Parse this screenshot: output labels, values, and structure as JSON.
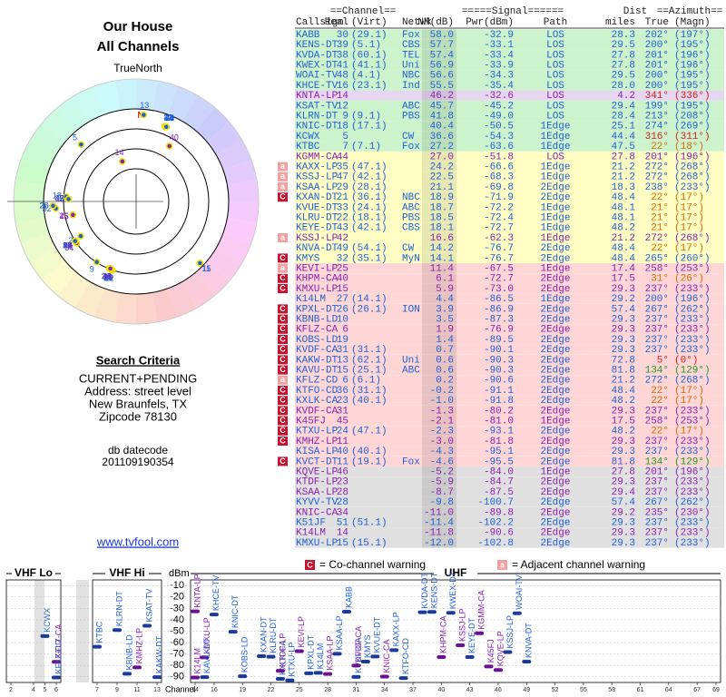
{
  "header": {
    "title": "Our House",
    "subtitle": "All Channels"
  },
  "polar": {
    "north_label": "TrueNorth",
    "north_marker": "N"
  },
  "criteria": {
    "title": "Search Criteria",
    "lines": [
      "CURRENT+PENDING",
      "Address: street level",
      "New Braunfels, TX",
      "Zipcode 78130"
    ],
    "datecode_label": "db datecode",
    "datecode": "201109190354"
  },
  "link": "www.tvfool.com",
  "table": {
    "group_headers": [
      "==Channel==",
      "=====Signal======",
      "Dist",
      "==Azimuth=="
    ],
    "headers": [
      "Callsign",
      "Real",
      "(Virt)",
      "Netwk",
      "NM(dB)",
      "Pwr(dBm)",
      "Path",
      "miles",
      "True",
      "(Magn)"
    ],
    "rows": [
      {
        "cells": [
          "KABB",
          "30",
          "(29.1)",
          "Fox",
          "58.0",
          "-32.9",
          "LOS",
          "28.3",
          "202°",
          "(197°)"
        ],
        "bg": "#cdf3cd",
        "fg": "#1f5fd6"
      },
      {
        "cells": [
          "KENS-DT",
          "39",
          "(5.1)",
          "CBS",
          "57.7",
          "-33.1",
          "LOS",
          "29.5",
          "200°",
          "(195°)"
        ],
        "bg": "#cdf3cd",
        "fg": "#1f5fd6"
      },
      {
        "cells": [
          "KVDA-DT",
          "38",
          "(60.1)",
          "TEL",
          "57.4",
          "-33.4",
          "LOS",
          "27.8",
          "201°",
          "(196°)"
        ],
        "bg": "#cdf3cd",
        "fg": "#1f5fd6"
      },
      {
        "cells": [
          "KWEX-DT",
          "41",
          "(41.1)",
          "Uni",
          "56.9",
          "-33.9",
          "LOS",
          "27.8",
          "201°",
          "(196°)"
        ],
        "bg": "#cdf3cd",
        "fg": "#1f5fd6"
      },
      {
        "cells": [
          "WOAI-TV",
          "48",
          "(4.1)",
          "NBC",
          "56.6",
          "-34.3",
          "LOS",
          "29.5",
          "200°",
          "(195°)"
        ],
        "bg": "#cdf3cd",
        "fg": "#1f5fd6"
      },
      {
        "cells": [
          "KHCE-TV",
          "16",
          "(23.1)",
          "Ind",
          "55.5",
          "-35.4",
          "LOS",
          "28.0",
          "200°",
          "(195°)"
        ],
        "bg": "#cdf3cd",
        "fg": "#1f5fd6"
      },
      {
        "cells": [
          "KNTA-LP",
          "14",
          null,
          null,
          "46.2",
          "-32.6",
          "LOS",
          "4.2",
          "341°",
          "(336°)"
        ],
        "bg": "#e6d6f0",
        "fg": "#8b1fb0",
        "az_fg": "#d42020"
      },
      {
        "cells": [
          "KSAT-TV",
          "12",
          null,
          "ABC",
          "45.7",
          "-45.2",
          "LOS",
          "29.4",
          "199°",
          "(195°)"
        ],
        "bg": "#cdf3cd",
        "fg": "#1f5fd6"
      },
      {
        "cells": [
          "KLRN-DT",
          "9",
          "(9.1)",
          "PBS",
          "41.8",
          "-49.0",
          "LOS",
          "28.4",
          "213°",
          "(208°)"
        ],
        "bg": "#cdf3cd",
        "fg": "#1f5fd6"
      },
      {
        "cells": [
          "KNIC-DT",
          "18",
          "(17.1)",
          null,
          "40.4",
          "-50.5",
          "1Edge",
          "25.1",
          "274°",
          "(269°)"
        ],
        "bg": "#cdf3cd",
        "fg": "#1f5fd6"
      },
      {
        "cells": [
          "KCWX",
          "5",
          null,
          "CW",
          "36.6",
          "-54.3",
          "1Edge",
          "44.4",
          "316°",
          "(311°)"
        ],
        "bg": "#cdf3cd",
        "fg": "#1f5fd6",
        "az_fg": "#d42020"
      },
      {
        "cells": [
          "KTBC",
          "7",
          "(7.1)",
          "Fox",
          "27.2",
          "-63.6",
          "1Edge",
          "47.5",
          "22°",
          "(18°)"
        ],
        "bg": "#cdf3cd",
        "fg": "#1f5fd6",
        "az_fg": "#d86a00"
      },
      {
        "cells": [
          "KGMM-CA",
          "44",
          null,
          null,
          "27.0",
          "-51.8",
          "LOS",
          "27.8",
          "201°",
          "(196°)"
        ],
        "bg": "#ffffc4",
        "fg": "#8b1fb0"
      },
      {
        "cells": [
          "KAXX-LP",
          "35",
          "(47.1)",
          null,
          "24.2",
          "-66.6",
          "1Edge",
          "21.2",
          "272°",
          "(268°)"
        ],
        "bg": "#ffffc4",
        "fg": "#1f5fd6",
        "warn": "a"
      },
      {
        "cells": [
          "KSSJ-LP",
          "47",
          "(42.1)",
          null,
          "22.5",
          "-68.3",
          "1Edge",
          "21.2",
          "272°",
          "(268°)"
        ],
        "bg": "#ffffc4",
        "fg": "#1f5fd6",
        "warn": "a"
      },
      {
        "cells": [
          "KSAA-LP",
          "29",
          "(28.1)",
          null,
          "21.1",
          "-69.8",
          "2Edge",
          "18.3",
          "238°",
          "(233°)"
        ],
        "bg": "#ffffc4",
        "fg": "#1f5fd6",
        "warn": "a"
      },
      {
        "cells": [
          "KXAN-DT",
          "21",
          "(36.1)",
          "NBC",
          "18.9",
          "-71.9",
          "2Edge",
          "48.4",
          "22°",
          "(17°)"
        ],
        "bg": "#ffffc4",
        "fg": "#1f5fd6",
        "az_fg": "#d86a00",
        "warn": "C"
      },
      {
        "cells": [
          "KVUE-DT",
          "33",
          "(24.1)",
          "ABC",
          "18.7",
          "-72.2",
          "1Edge",
          "48.1",
          "21°",
          "(17°)"
        ],
        "bg": "#ffffc4",
        "fg": "#1f5fd6",
        "az_fg": "#d86a00"
      },
      {
        "cells": [
          "KLRU-DT",
          "22",
          "(18.1)",
          "PBS",
          "18.5",
          "-72.4",
          "1Edge",
          "48.1",
          "21°",
          "(17°)"
        ],
        "bg": "#ffffc4",
        "fg": "#1f5fd6",
        "az_fg": "#d86a00"
      },
      {
        "cells": [
          "KEYE-DT",
          "43",
          "(42.1)",
          "CBS",
          "18.1",
          "-72.7",
          "1Edge",
          "48.2",
          "21°",
          "(17°)"
        ],
        "bg": "#ffffc4",
        "fg": "#1f5fd6",
        "az_fg": "#d86a00"
      },
      {
        "cells": [
          "KSSJ-LP",
          "42",
          null,
          null,
          "16.6",
          "-62.3",
          "1Edge",
          "21.2",
          "272°",
          "(268°)"
        ],
        "bg": "#ffffc4",
        "fg": "#8b1fb0",
        "warn": "a"
      },
      {
        "cells": [
          "KNVA-DT",
          "49",
          "(54.1)",
          "CW",
          "14.2",
          "-76.7",
          "2Edge",
          "48.4",
          "22°",
          "(17°)"
        ],
        "bg": "#ffffc4",
        "fg": "#1f5fd6",
        "az_fg": "#d86a00"
      },
      {
        "cells": [
          "KMYS",
          "32",
          "(35.1)",
          "MyN",
          "14.1",
          "-76.7",
          "2Edge",
          "48.4",
          "265°",
          "(260°)"
        ],
        "bg": "#ffffc4",
        "fg": "#1f5fd6",
        "warn": "C"
      },
      {
        "cells": [
          "KEVI-LP",
          "25",
          null,
          null,
          "11.4",
          "-67.5",
          "1Edge",
          "17.4",
          "258°",
          "(253°)"
        ],
        "bg": "#ffd6d6",
        "fg": "#8b1fb0",
        "warn": "a"
      },
      {
        "cells": [
          "KHPM-CA",
          "40",
          null,
          null,
          "6.1",
          "-72.7",
          "2Edge",
          "17.5",
          "31°",
          "(26°)"
        ],
        "bg": "#ffd6d6",
        "fg": "#8b1fb0",
        "az_fg": "#d86a00",
        "warn": "C"
      },
      {
        "cells": [
          "KMXU-LP",
          "15",
          null,
          null,
          "5.9",
          "-73.0",
          "2Edge",
          "29.3",
          "237°",
          "(233°)"
        ],
        "bg": "#ffd6d6",
        "fg": "#8b1fb0",
        "warn": "C"
      },
      {
        "cells": [
          "K14LM",
          "27",
          "(14.1)",
          null,
          "4.4",
          "-86.5",
          "1Edge",
          "29.2",
          "200°",
          "(196°)"
        ],
        "bg": "#ffd6d6",
        "fg": "#1f5fd6"
      },
      {
        "cells": [
          "KPXL-DT",
          "26",
          "(26.1)",
          "ION",
          "3.9",
          "-86.9",
          "2Edge",
          "57.4",
          "267°",
          "(262°)"
        ],
        "bg": "#ffd6d6",
        "fg": "#1f5fd6",
        "warn": "C"
      },
      {
        "cells": [
          "KBNB-LD",
          "10",
          null,
          null,
          "3.5",
          "-87.3",
          "2Edge",
          "29.3",
          "237°",
          "(233°)"
        ],
        "bg": "#ffd6d6",
        "fg": "#1f5fd6",
        "warn": "C"
      },
      {
        "cells": [
          "KFLZ-CA",
          "6",
          null,
          null,
          "1.9",
          "-76.9",
          "2Edge",
          "29.3",
          "237°",
          "(233°)"
        ],
        "bg": "#ffd6d6",
        "fg": "#8b1fb0",
        "warn": "C"
      },
      {
        "cells": [
          "KOBS-LD",
          "19",
          null,
          null,
          "1.4",
          "-89.5",
          "2Edge",
          "29.3",
          "237°",
          "(233°)"
        ],
        "bg": "#ffd6d6",
        "fg": "#1f5fd6",
        "warn": "C"
      },
      {
        "cells": [
          "KVDF-CA",
          "31",
          "(31.1)",
          null,
          "0.7",
          "-90.1",
          "2Edge",
          "29.3",
          "237°",
          "(233°)"
        ],
        "bg": "#ffd6d6",
        "fg": "#1f5fd6",
        "warn": "C"
      },
      {
        "cells": [
          "KAKW-DT",
          "13",
          "(62.1)",
          "Uni",
          "0.6",
          "-90.3",
          "2Edge",
          "72.8",
          "5°",
          "(0°)"
        ],
        "bg": "#ffd6d6",
        "fg": "#1f5fd6",
        "az_fg": "#d42020",
        "warn": "C"
      },
      {
        "cells": [
          "KAVU-DT",
          "15",
          "(25.1)",
          "ABC",
          "0.6",
          "-90.3",
          "2Edge",
          "81.8",
          "134°",
          "(129°)"
        ],
        "bg": "#ffd6d6",
        "fg": "#1f5fd6",
        "az_fg": "#1e9a1e",
        "warn": "C"
      },
      {
        "cells": [
          "KFLZ-CD",
          "6",
          "(6.1)",
          null,
          "0.2",
          "-90.6",
          "2Edge",
          "21.2",
          "272°",
          "(268°)"
        ],
        "bg": "#ffd6d6",
        "fg": "#1f5fd6",
        "warn": "a"
      },
      {
        "cells": [
          "KTFO-CD",
          "36",
          "(31.1)",
          null,
          "-0.2",
          "-91.1",
          "2Edge",
          "48.4",
          "22°",
          "(17°)"
        ],
        "bg": "#ffd6d6",
        "fg": "#1f5fd6",
        "az_fg": "#d86a00",
        "warn": "C"
      },
      {
        "cells": [
          "KXLK-CA",
          "23",
          "(40.1)",
          null,
          "-1.0",
          "-91.8",
          "2Edge",
          "48.2",
          "22°",
          "(17°)"
        ],
        "bg": "#ffd6d6",
        "fg": "#1f5fd6",
        "az_fg": "#d86a00",
        "warn": "C"
      },
      {
        "cells": [
          "KVDF-CA",
          "31",
          null,
          null,
          "-1.3",
          "-80.2",
          "2Edge",
          "29.3",
          "237°",
          "(233°)"
        ],
        "bg": "#ffd6d6",
        "fg": "#8b1fb0",
        "warn": "C"
      },
      {
        "cells": [
          "K45FJ",
          "45",
          null,
          null,
          "-2.1",
          "-81.0",
          "1Edge",
          "17.5",
          "258°",
          "(253°)"
        ],
        "bg": "#ffd6d6",
        "fg": "#8b1fb0",
        "warn": "C"
      },
      {
        "cells": [
          "KTXU-LP",
          "24",
          "(47.1)",
          null,
          "-2.3",
          "-93.1",
          "2Edge",
          "48.2",
          "22°",
          "(17°)"
        ],
        "bg": "#ffd6d6",
        "fg": "#1f5fd6",
        "az_fg": "#d86a00",
        "warn": "C"
      },
      {
        "cells": [
          "KMHZ-LP",
          "11",
          null,
          null,
          "-3.0",
          "-81.8",
          "2Edge",
          "29.3",
          "237°",
          "(233°)"
        ],
        "bg": "#ffd6d6",
        "fg": "#8b1fb0",
        "warn": "C"
      },
      {
        "cells": [
          "KISA-LP",
          "40",
          "(40.1)",
          null,
          "-4.3",
          "-95.1",
          "2Edge",
          "29.3",
          "237°",
          "(233°)"
        ],
        "bg": "#ffd6d6",
        "fg": "#1f5fd6"
      },
      {
        "cells": [
          "KVCT-DT",
          "11",
          "(19.1)",
          "Fox",
          "-4.6",
          "-95.5",
          "2Edge",
          "81.8",
          "134°",
          "(129°)"
        ],
        "bg": "#ffd6d6",
        "fg": "#1f5fd6",
        "az_fg": "#1e9a1e",
        "warn": "C"
      },
      {
        "cells": [
          "KQVE-LP",
          "46",
          null,
          null,
          "-5.2",
          "-84.0",
          "1Edge",
          "27.8",
          "201°",
          "(196°)"
        ],
        "bg": "#e0e0e0",
        "fg": "#8b1fb0"
      },
      {
        "cells": [
          "KTDF-LP",
          "23",
          null,
          null,
          "-5.9",
          "-84.7",
          "2Edge",
          "29.3",
          "237°",
          "(233°)"
        ],
        "bg": "#e0e0e0",
        "fg": "#8b1fb0"
      },
      {
        "cells": [
          "KSAA-LP",
          "28",
          null,
          null,
          "-8.7",
          "-87.5",
          "2Edge",
          "29.4",
          "237°",
          "(233°)"
        ],
        "bg": "#e0e0e0",
        "fg": "#8b1fb0"
      },
      {
        "cells": [
          "KYVV-TV",
          "28",
          null,
          null,
          "-9.8",
          "-100.7",
          "2Edge",
          "57.4",
          "267°",
          "(262°)"
        ],
        "bg": "#e0e0e0",
        "fg": "#1f5fd6"
      },
      {
        "cells": [
          "KNIC-CA",
          "34",
          null,
          null,
          "-11.0",
          "-89.8",
          "2Edge",
          "29.2",
          "235°",
          "(230°)"
        ],
        "bg": "#e0e0e0",
        "fg": "#8b1fb0"
      },
      {
        "cells": [
          "K51JF",
          "51",
          "(51.1)",
          null,
          "-11.4",
          "-102.2",
          "2Edge",
          "29.3",
          "237°",
          "(233°)"
        ],
        "bg": "#e0e0e0",
        "fg": "#1f5fd6"
      },
      {
        "cells": [
          "K14LM",
          "14",
          null,
          null,
          "-11.8",
          "-90.6",
          "2Edge",
          "29.3",
          "237°",
          "(233°)"
        ],
        "bg": "#e0e0e0",
        "fg": "#8b1fb0"
      },
      {
        "cells": [
          "KMXU-LP",
          "15",
          "(15.1)",
          null,
          "-12.0",
          "-102.8",
          "2Edge",
          "29.3",
          "237°",
          "(233°)"
        ],
        "bg": "#e0e0e0",
        "fg": "#1f5fd6"
      }
    ]
  },
  "legend": [
    {
      "symbol": "C",
      "text": "= Co-channel warning",
      "color": "#c8102e"
    },
    {
      "symbol": "a",
      "text": "= Adjacent channel warning",
      "color": "#f2a0a0"
    }
  ],
  "spectrum": {
    "ylabel": "dBm",
    "xlabel": "Channel",
    "ylim": [
      -5,
      -95
    ],
    "yticks": [
      -10,
      -20,
      -30,
      -40,
      -50,
      -60,
      -70,
      -80,
      -90
    ],
    "grid": true,
    "segments": [
      {
        "label": "VHF Lo",
        "xlim": [
          2,
          6
        ],
        "xticks": [
          2,
          4,
          5,
          6
        ]
      },
      {
        "label": "VHF Hi",
        "xlim": [
          7,
          13
        ],
        "xticks": [
          7,
          9,
          11,
          13
        ]
      },
      {
        "label": "UHF",
        "xlim": [
          14,
          69
        ],
        "xticks": [
          14,
          16,
          19,
          22,
          25,
          28,
          31,
          34,
          37,
          40,
          43,
          46,
          49,
          52,
          55,
          58,
          61,
          64,
          67,
          69
        ]
      }
    ]
  }
}
